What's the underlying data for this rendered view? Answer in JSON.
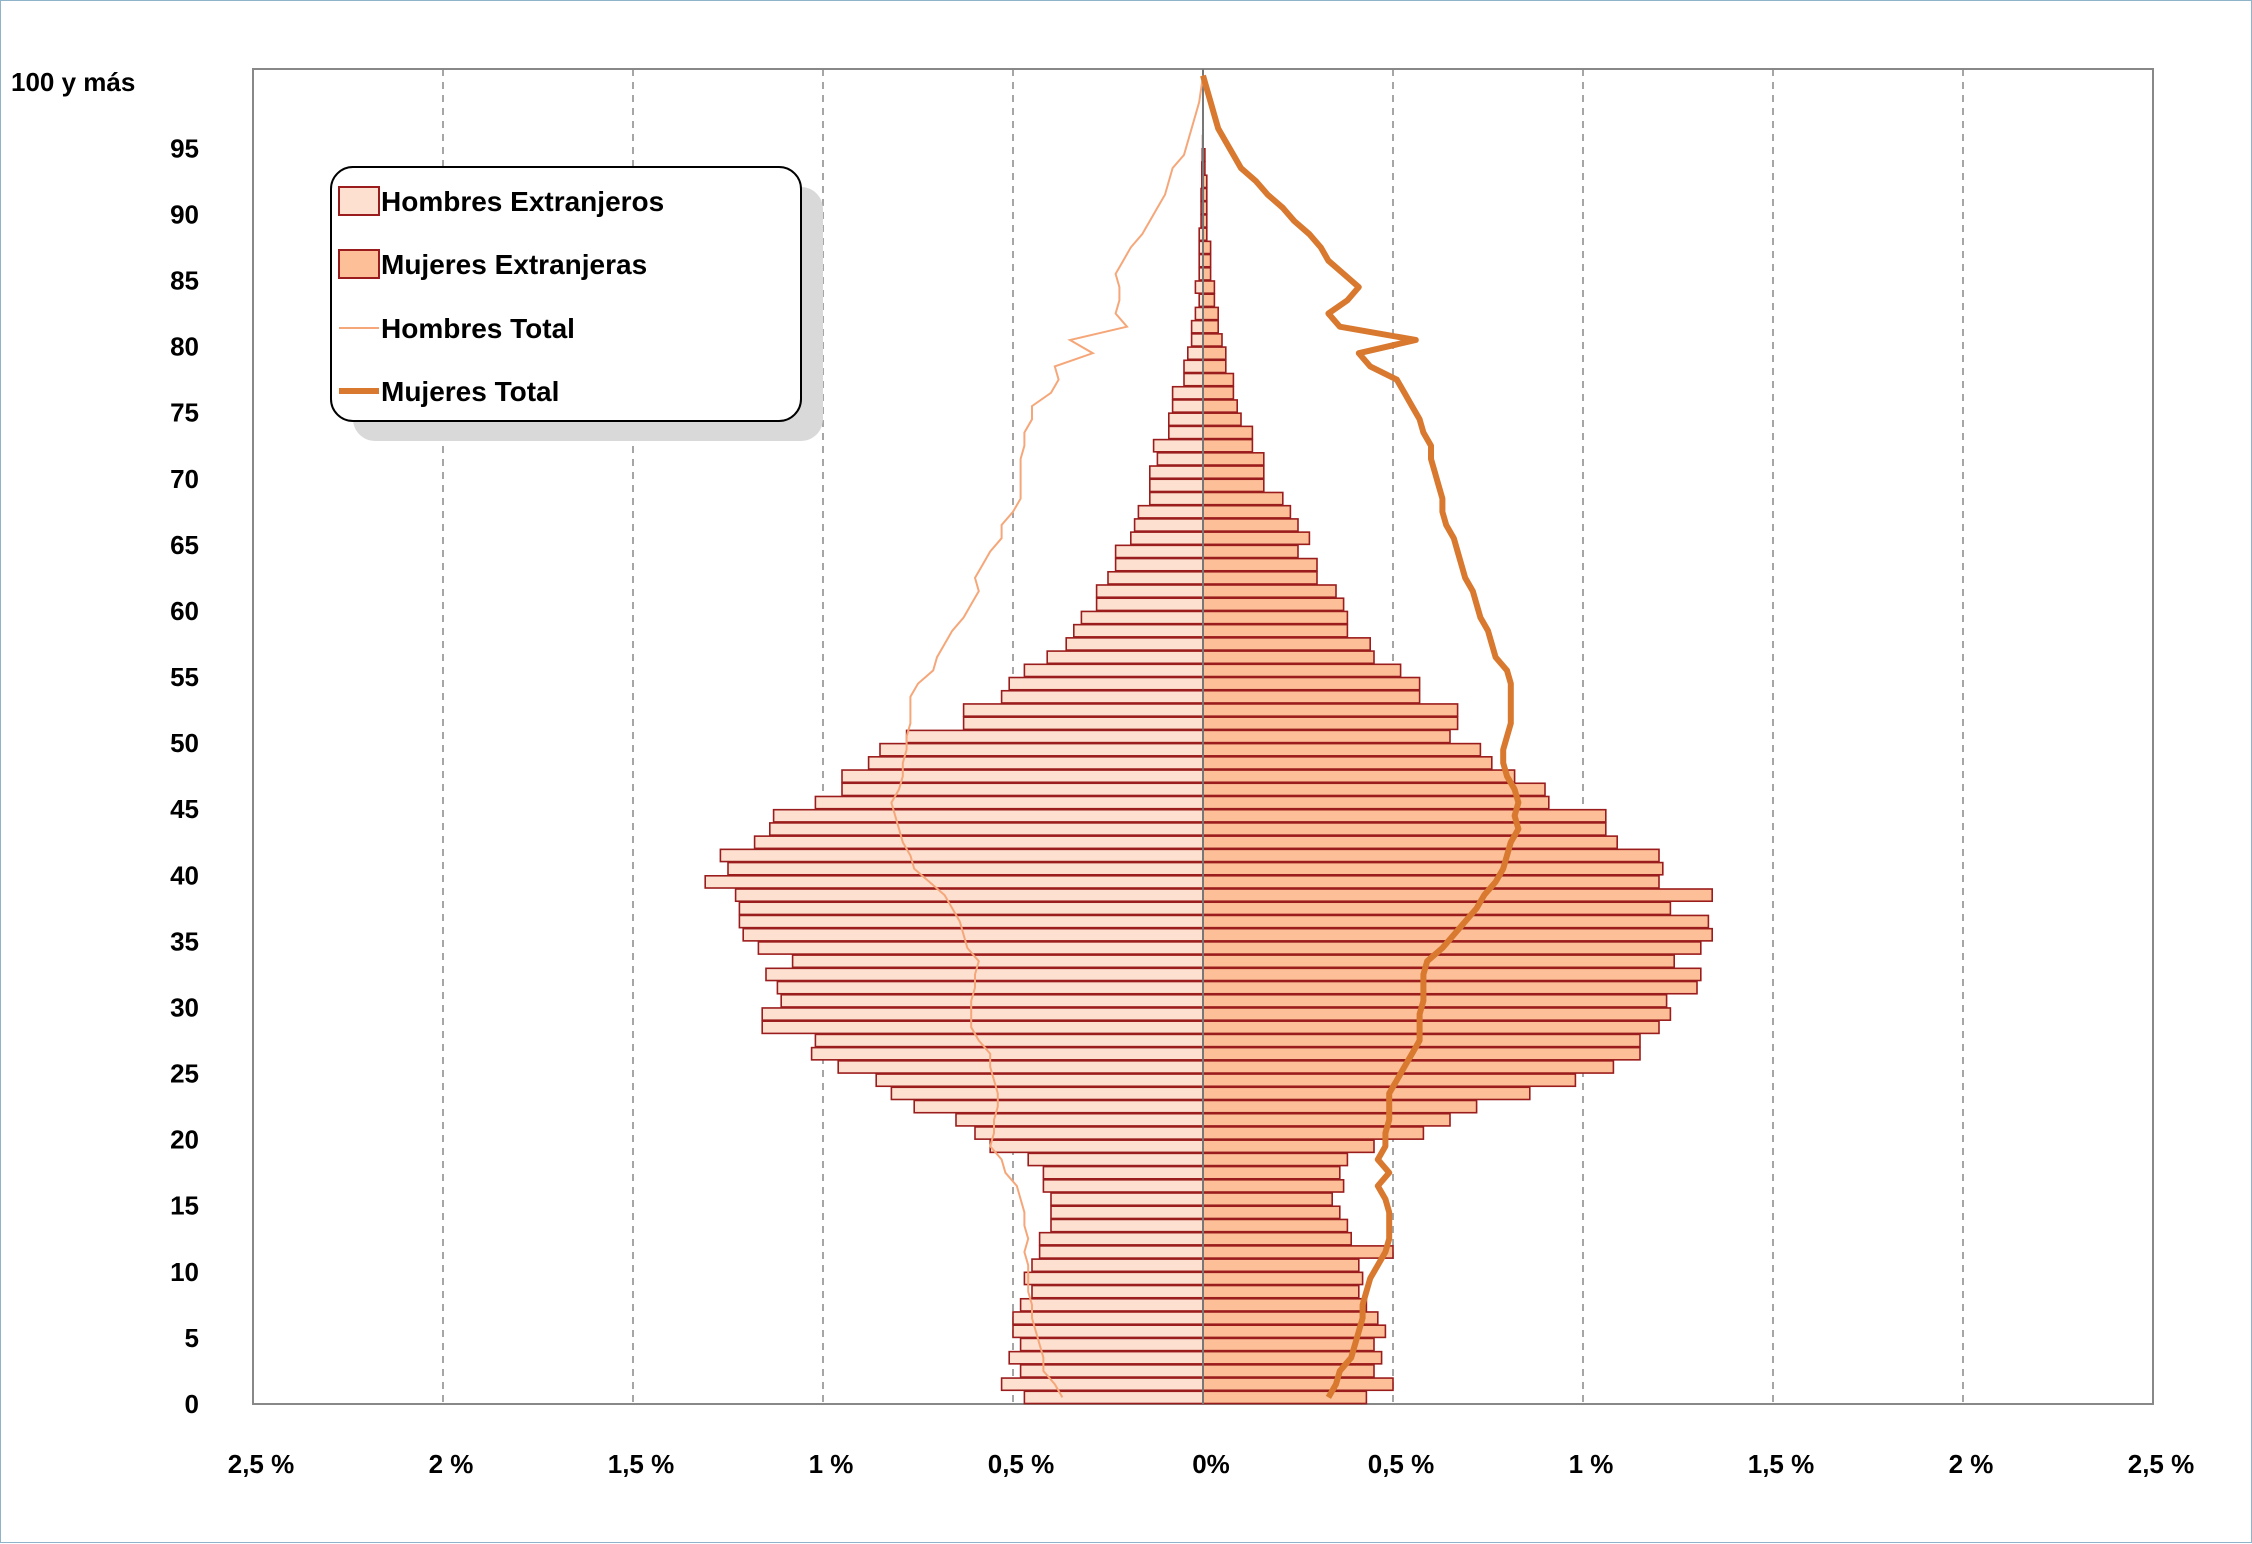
{
  "chart_data": {
    "type": "bar",
    "title": "",
    "xlabel": "",
    "ylabel": "",
    "xlim": [
      -2.5,
      2.5
    ],
    "ylim": [
      0,
      101
    ],
    "grid": true,
    "legend_position": "top-left",
    "y_tick_labels": [
      "0",
      "5",
      "10",
      "15",
      "20",
      "25",
      "30",
      "35",
      "40",
      "45",
      "50",
      "55",
      "60",
      "65",
      "70",
      "75",
      "80",
      "85",
      "90",
      "95",
      "100 y más"
    ],
    "x_tick_labels": [
      "2,5 %",
      "2 %",
      "1,5 %",
      "1 %",
      "0,5 %",
      "0%",
      "0,5 %",
      "1 %",
      "1,5 %",
      "2 %",
      "2,5  %"
    ],
    "ages": [
      0,
      1,
      2,
      3,
      4,
      5,
      6,
      7,
      8,
      9,
      10,
      11,
      12,
      13,
      14,
      15,
      16,
      17,
      18,
      19,
      20,
      21,
      22,
      23,
      24,
      25,
      26,
      27,
      28,
      29,
      30,
      31,
      32,
      33,
      34,
      35,
      36,
      37,
      38,
      39,
      40,
      41,
      42,
      43,
      44,
      45,
      46,
      47,
      48,
      49,
      50,
      51,
      52,
      53,
      54,
      55,
      56,
      57,
      58,
      59,
      60,
      61,
      62,
      63,
      64,
      65,
      66,
      67,
      68,
      69,
      70,
      71,
      72,
      73,
      74,
      75,
      76,
      77,
      78,
      79,
      80,
      81,
      82,
      83,
      84,
      85,
      86,
      87,
      88,
      89,
      90,
      91,
      92,
      93,
      94,
      95,
      96,
      97,
      98,
      99,
      100
    ],
    "series": [
      {
        "name": "Hombres Extranjeros",
        "kind": "bar",
        "color": "#fde0d0",
        "values": [
          0.47,
          0.53,
          0.48,
          0.51,
          0.48,
          0.5,
          0.5,
          0.48,
          0.45,
          0.47,
          0.45,
          0.43,
          0.43,
          0.4,
          0.4,
          0.4,
          0.42,
          0.42,
          0.46,
          0.56,
          0.6,
          0.65,
          0.76,
          0.82,
          0.86,
          0.96,
          1.03,
          1.02,
          1.16,
          1.16,
          1.11,
          1.12,
          1.15,
          1.08,
          1.17,
          1.21,
          1.22,
          1.22,
          1.23,
          1.31,
          1.25,
          1.27,
          1.18,
          1.14,
          1.13,
          1.02,
          0.95,
          0.95,
          0.88,
          0.85,
          0.78,
          0.63,
          0.63,
          0.53,
          0.51,
          0.47,
          0.41,
          0.36,
          0.34,
          0.32,
          0.28,
          0.28,
          0.25,
          0.23,
          0.23,
          0.19,
          0.18,
          0.17,
          0.14,
          0.14,
          0.14,
          0.12,
          0.13,
          0.09,
          0.09,
          0.08,
          0.08,
          0.05,
          0.05,
          0.04,
          0.03,
          0.03,
          0.02,
          0.01,
          0.02,
          0.01,
          0.01,
          0.01,
          0.01,
          0.005,
          0.005,
          0.005,
          0.003,
          0.003,
          0.002,
          0.001,
          0.0,
          0.0,
          0.0,
          0.0,
          0.0
        ]
      },
      {
        "name": "Mujeres Extranjeras",
        "kind": "bar",
        "color": "#fcbf98",
        "values": [
          0.43,
          0.5,
          0.45,
          0.47,
          0.45,
          0.48,
          0.46,
          0.43,
          0.41,
          0.42,
          0.41,
          0.5,
          0.39,
          0.38,
          0.36,
          0.34,
          0.37,
          0.36,
          0.38,
          0.45,
          0.58,
          0.65,
          0.72,
          0.86,
          0.98,
          1.08,
          1.15,
          1.15,
          1.2,
          1.23,
          1.22,
          1.3,
          1.31,
          1.24,
          1.31,
          1.34,
          1.33,
          1.23,
          1.34,
          1.2,
          1.21,
          1.2,
          1.09,
          1.06,
          1.06,
          0.91,
          0.9,
          0.82,
          0.76,
          0.73,
          0.65,
          0.67,
          0.67,
          0.57,
          0.57,
          0.52,
          0.45,
          0.44,
          0.38,
          0.38,
          0.37,
          0.35,
          0.3,
          0.3,
          0.25,
          0.28,
          0.25,
          0.23,
          0.21,
          0.16,
          0.16,
          0.16,
          0.13,
          0.13,
          0.1,
          0.09,
          0.08,
          0.08,
          0.06,
          0.06,
          0.05,
          0.04,
          0.04,
          0.03,
          0.03,
          0.02,
          0.02,
          0.02,
          0.01,
          0.01,
          0.01,
          0.01,
          0.01,
          0.005,
          0.005,
          0.0,
          0.0,
          0.0,
          0.0,
          0.0,
          0.0
        ]
      },
      {
        "name": "Hombres Total",
        "kind": "line",
        "color": "#f5a77a",
        "values": [
          0.37,
          0.39,
          0.42,
          0.42,
          0.43,
          0.44,
          0.45,
          0.45,
          0.46,
          0.46,
          0.46,
          0.47,
          0.46,
          0.47,
          0.47,
          0.48,
          0.49,
          0.52,
          0.53,
          0.56,
          0.55,
          0.55,
          0.54,
          0.54,
          0.55,
          0.56,
          0.56,
          0.59,
          0.61,
          0.61,
          0.61,
          0.6,
          0.6,
          0.59,
          0.62,
          0.63,
          0.64,
          0.66,
          0.68,
          0.72,
          0.76,
          0.77,
          0.79,
          0.8,
          0.81,
          0.82,
          0.8,
          0.79,
          0.79,
          0.78,
          0.78,
          0.77,
          0.77,
          0.77,
          0.75,
          0.71,
          0.7,
          0.68,
          0.66,
          0.63,
          0.61,
          0.59,
          0.6,
          0.58,
          0.56,
          0.53,
          0.53,
          0.5,
          0.48,
          0.48,
          0.48,
          0.48,
          0.47,
          0.47,
          0.45,
          0.45,
          0.4,
          0.38,
          0.39,
          0.29,
          0.35,
          0.2,
          0.23,
          0.22,
          0.22,
          0.23,
          0.21,
          0.19,
          0.16,
          0.14,
          0.12,
          0.1,
          0.09,
          0.08,
          0.05,
          0.04,
          0.03,
          0.02,
          0.01,
          0.005,
          0.0
        ]
      },
      {
        "name": "Mujeres Total",
        "kind": "line",
        "color": "#d8792f",
        "values": [
          0.33,
          0.35,
          0.36,
          0.39,
          0.4,
          0.41,
          0.42,
          0.42,
          0.43,
          0.44,
          0.46,
          0.48,
          0.49,
          0.49,
          0.49,
          0.48,
          0.46,
          0.49,
          0.46,
          0.48,
          0.48,
          0.49,
          0.49,
          0.49,
          0.51,
          0.53,
          0.55,
          0.57,
          0.57,
          0.57,
          0.58,
          0.58,
          0.58,
          0.59,
          0.63,
          0.66,
          0.69,
          0.72,
          0.74,
          0.77,
          0.79,
          0.8,
          0.81,
          0.83,
          0.82,
          0.83,
          0.82,
          0.8,
          0.79,
          0.79,
          0.8,
          0.81,
          0.81,
          0.81,
          0.81,
          0.8,
          0.77,
          0.76,
          0.75,
          0.73,
          0.72,
          0.71,
          0.69,
          0.68,
          0.67,
          0.66,
          0.64,
          0.63,
          0.63,
          0.62,
          0.61,
          0.6,
          0.6,
          0.58,
          0.57,
          0.55,
          0.53,
          0.51,
          0.44,
          0.41,
          0.56,
          0.36,
          0.33,
          0.38,
          0.41,
          0.37,
          0.33,
          0.31,
          0.28,
          0.24,
          0.21,
          0.17,
          0.14,
          0.1,
          0.08,
          0.06,
          0.04,
          0.03,
          0.02,
          0.01,
          0.0
        ]
      }
    ]
  }
}
